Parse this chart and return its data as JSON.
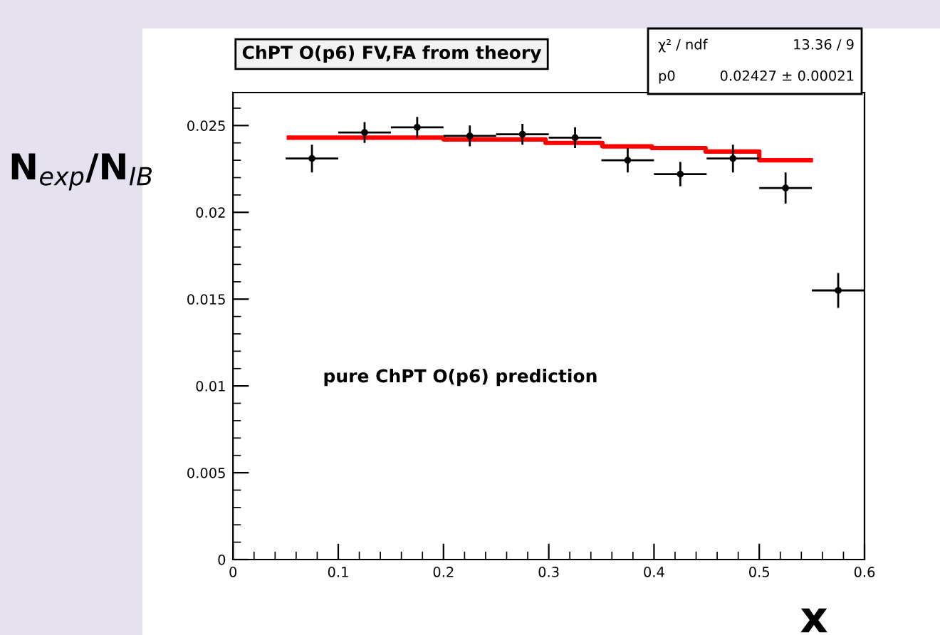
{
  "chart_data": {
    "type": "scatter",
    "title": "ChPT O(p6) FV,FA from theory",
    "xlabel": "x",
    "ylabel": "N$_{exp}$/N$_{IB}$",
    "annotations": [
      "pure ChPT O(p6) prediction",
      "χ² / ndf",
      "13.36 / 9",
      "p0",
      "0.02427 ± 0.00021"
    ],
    "xlim": [
      0,
      0.6
    ],
    "xticks": [
      0,
      0.1,
      0.2,
      0.3,
      0.4,
      0.5,
      0.6
    ],
    "ylim": [
      0,
      0.0269
    ],
    "yticks": [
      0,
      0.005,
      0.01,
      0.015,
      0.02,
      0.025
    ],
    "grid": false,
    "series": [
      {
        "color": "#000000",
        "marker": "circle",
        "x": [
          0.075,
          0.125,
          0.175,
          0.225,
          0.275,
          0.325,
          0.375,
          0.425,
          0.475,
          0.525,
          0.575
        ],
        "values": [
          0.0231,
          0.0246,
          0.0249,
          0.0244,
          0.0245,
          0.0243,
          0.023,
          0.0222,
          0.0231,
          0.0214,
          0.0155
        ],
        "errors": [
          0.0008,
          0.0006,
          0.0006,
          0.0006,
          0.0006,
          0.0006,
          0.0007,
          0.0007,
          0.0008,
          0.0009,
          0.001
        ],
        "xerrors": [
          0.025,
          0.025,
          0.025,
          0.025,
          0.025,
          0.025,
          0.025,
          0.025,
          0.025,
          0.025,
          0.025
        ]
      },
      {
        "type": "step",
        "color": "#ff0000",
        "marker": "none",
        "x": [
          0.053,
          0.2,
          0.297,
          0.351,
          0.398,
          0.449,
          0.5,
          0.549
        ],
        "values": [
          0.0243,
          0.0242,
          0.024,
          0.0238,
          0.0237,
          0.0235,
          0.023,
          0.023
        ]
      }
    ]
  }
}
